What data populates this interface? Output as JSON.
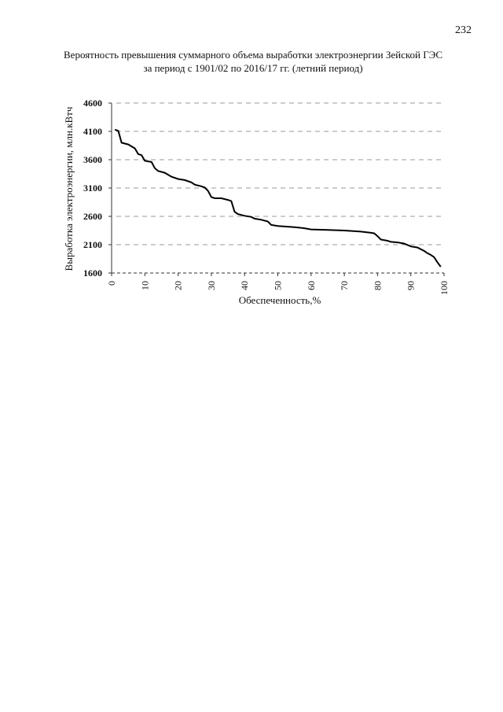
{
  "page_number": "232",
  "chart_data": {
    "type": "line",
    "title": [
      "Вероятность превышения суммарного объема выработки электроэнергии Зейской ГЭС",
      "за период с 1901/02 по 2016/17 гг. (летний период)"
    ],
    "x_label": "Обеспеченность,%",
    "y_label": "Выработка электроэнергии, млн.кВтч",
    "xlim": [
      0,
      100
    ],
    "xticks": [
      0,
      10,
      20,
      30,
      40,
      50,
      60,
      70,
      80,
      90,
      100
    ],
    "ylim": [
      1600,
      4600
    ],
    "yticks": [
      1600,
      2100,
      2600,
      3100,
      3600,
      4100,
      4600
    ],
    "grid": true,
    "grid_style": "dashed",
    "x": [
      1,
      2,
      3,
      5,
      7,
      8,
      9,
      10,
      12,
      13,
      14,
      16,
      18,
      20,
      22,
      24,
      25,
      27,
      28,
      29,
      30,
      31,
      33,
      35,
      36,
      37,
      38,
      40,
      42,
      43,
      45,
      47,
      48,
      50,
      55,
      58,
      60,
      65,
      70,
      75,
      78,
      79,
      80,
      81,
      83,
      84,
      86,
      88,
      90,
      92,
      94,
      95,
      96,
      97,
      98,
      99
    ],
    "series": [
      {
        "color": "#000000",
        "values": [
          4130,
          4110,
          3900,
          3870,
          3800,
          3700,
          3680,
          3580,
          3560,
          3450,
          3400,
          3370,
          3300,
          3260,
          3240,
          3200,
          3160,
          3130,
          3110,
          3050,
          2940,
          2920,
          2920,
          2890,
          2870,
          2680,
          2640,
          2610,
          2590,
          2560,
          2540,
          2510,
          2450,
          2430,
          2410,
          2390,
          2370,
          2360,
          2350,
          2330,
          2310,
          2300,
          2250,
          2190,
          2170,
          2150,
          2140,
          2120,
          2070,
          2050,
          1990,
          1950,
          1920,
          1880,
          1790,
          1710
        ]
      }
    ]
  }
}
